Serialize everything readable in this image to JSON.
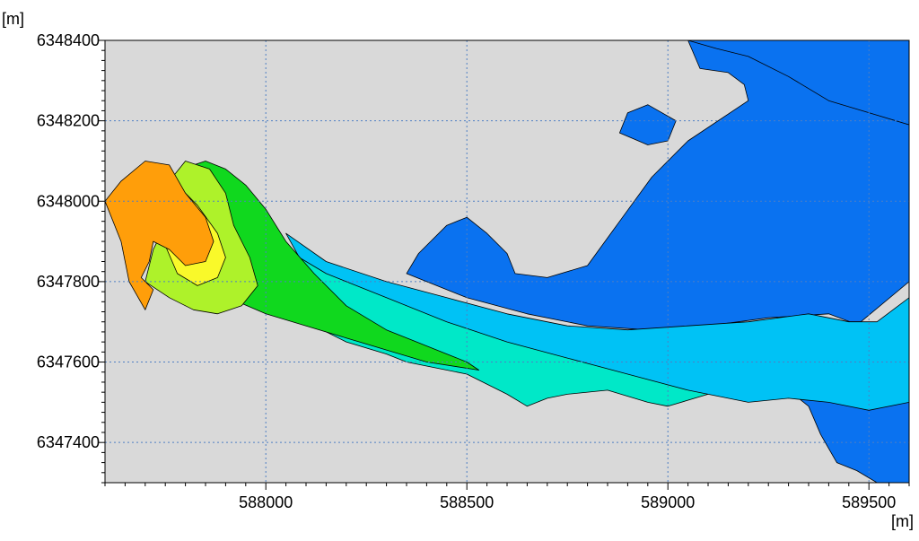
{
  "chart_data": {
    "type": "heatmap",
    "title": "",
    "xlabel": "[m]",
    "ylabel": "[m]",
    "xlim": [
      587600,
      589600
    ],
    "ylim": [
      6347300,
      6348400
    ],
    "x_ticks": [
      588000,
      588500,
      589000,
      589500
    ],
    "x_tick_labels": [
      "588000",
      "588500",
      "589000",
      "589500"
    ],
    "y_ticks": [
      6347400,
      6347600,
      6347800,
      6348000,
      6348200,
      6348400
    ],
    "y_tick_labels": [
      "6347400",
      "6347600",
      "6347800",
      "6348000",
      "6348200",
      "6348400"
    ],
    "grid": true,
    "legend": "none",
    "colors": {
      "background": "#d9d9d9",
      "grid": "#4f7fc4",
      "contour_line": "#000000",
      "levels": [
        "#0a72f0",
        "#00c2f5",
        "#00e8c8",
        "#10d81e",
        "#aef22a",
        "#f9f92a",
        "#ff9e0a"
      ]
    },
    "regions": [
      {
        "level": 0,
        "color": "#0a72f0",
        "points": [
          [
            588350,
            6347820
          ],
          [
            588500,
            6347760
          ],
          [
            588650,
            6347720
          ],
          [
            588800,
            6347690
          ],
          [
            588950,
            6347680
          ],
          [
            589100,
            6347690
          ],
          [
            589250,
            6347710
          ],
          [
            589400,
            6347720
          ],
          [
            589480,
            6347690
          ],
          [
            589600,
            6347700
          ],
          [
            589600,
            6347300
          ],
          [
            589520,
            6347300
          ],
          [
            589470,
            6347330
          ],
          [
            589420,
            6347350
          ],
          [
            589380,
            6347420
          ],
          [
            589350,
            6347490
          ],
          [
            589300,
            6347530
          ],
          [
            589250,
            6347540
          ],
          [
            589210,
            6347520
          ],
          [
            589160,
            6347600
          ],
          [
            589200,
            6347640
          ],
          [
            589250,
            6347660
          ],
          [
            589300,
            6347690
          ],
          [
            589380,
            6347700
          ],
          [
            589480,
            6347700
          ],
          [
            589600,
            6347800
          ],
          [
            589600,
            6348400
          ],
          [
            589050,
            6348400
          ],
          [
            589080,
            6348330
          ],
          [
            589150,
            6348320
          ],
          [
            589190,
            6348290
          ],
          [
            589200,
            6348250
          ],
          [
            589050,
            6348150
          ],
          [
            588960,
            6348060
          ],
          [
            588880,
            6347950
          ],
          [
            588800,
            6347840
          ],
          [
            588700,
            6347810
          ],
          [
            588620,
            6347820
          ],
          [
            588600,
            6347870
          ],
          [
            588550,
            6347920
          ],
          [
            588500,
            6347960
          ],
          [
            588450,
            6347940
          ],
          [
            588380,
            6347870
          ]
        ]
      },
      {
        "level": 0,
        "color": "#0a72f0",
        "points": [
          [
            589050,
            6348400
          ],
          [
            589600,
            6348400
          ],
          [
            589600,
            6348190
          ],
          [
            589400,
            6348250
          ],
          [
            589300,
            6348310
          ],
          [
            589200,
            6348360
          ],
          [
            589120,
            6348380
          ]
        ]
      },
      {
        "level": 0,
        "color": "#0a72f0",
        "points": [
          [
            588900,
            6348220
          ],
          [
            588950,
            6348240
          ],
          [
            589020,
            6348200
          ],
          [
            589000,
            6348150
          ],
          [
            588950,
            6348140
          ],
          [
            588880,
            6348170
          ]
        ]
      },
      {
        "level": 1,
        "color": "#00c2f5",
        "points": [
          [
            588050,
            6347920
          ],
          [
            588150,
            6347850
          ],
          [
            588300,
            6347800
          ],
          [
            588450,
            6347760
          ],
          [
            588600,
            6347720
          ],
          [
            588750,
            6347690
          ],
          [
            588900,
            6347680
          ],
          [
            589050,
            6347690
          ],
          [
            589200,
            6347700
          ],
          [
            589350,
            6347720
          ],
          [
            589450,
            6347700
          ],
          [
            589520,
            6347700
          ],
          [
            589600,
            6347760
          ],
          [
            589600,
            6347500
          ],
          [
            589500,
            6347480
          ],
          [
            589400,
            6347500
          ],
          [
            589300,
            6347510
          ],
          [
            589200,
            6347500
          ],
          [
            589100,
            6347520
          ],
          [
            589000,
            6347520
          ],
          [
            588900,
            6347540
          ],
          [
            588800,
            6347560
          ],
          [
            588700,
            6347580
          ],
          [
            588600,
            6347600
          ],
          [
            588500,
            6347620
          ],
          [
            588400,
            6347660
          ],
          [
            588300,
            6347710
          ],
          [
            588200,
            6347770
          ],
          [
            588100,
            6347830
          ]
        ]
      },
      {
        "level": 2,
        "color": "#00e8c8",
        "points": [
          [
            587960,
            6347980
          ],
          [
            588050,
            6347880
          ],
          [
            588150,
            6347820
          ],
          [
            588300,
            6347760
          ],
          [
            588450,
            6347700
          ],
          [
            588600,
            6347650
          ],
          [
            588750,
            6347610
          ],
          [
            588900,
            6347570
          ],
          [
            589050,
            6347530
          ],
          [
            589100,
            6347520
          ],
          [
            589000,
            6347490
          ],
          [
            588950,
            6347500
          ],
          [
            588850,
            6347530
          ],
          [
            588750,
            6347520
          ],
          [
            588700,
            6347510
          ],
          [
            588650,
            6347490
          ],
          [
            588600,
            6347520
          ],
          [
            588500,
            6347570
          ],
          [
            588400,
            6347590
          ],
          [
            588350,
            6347600
          ],
          [
            588300,
            6347620
          ],
          [
            588200,
            6347650
          ],
          [
            588100,
            6347700
          ],
          [
            588000,
            6347760
          ],
          [
            587950,
            6347820
          ],
          [
            587900,
            6347900
          ]
        ]
      },
      {
        "level": 3,
        "color": "#10d81e",
        "points": [
          [
            587850,
            6348100
          ],
          [
            587900,
            6348080
          ],
          [
            587950,
            6348040
          ],
          [
            588000,
            6347980
          ],
          [
            588050,
            6347900
          ],
          [
            588120,
            6347820
          ],
          [
            588200,
            6347740
          ],
          [
            588300,
            6347680
          ],
          [
            588400,
            6347640
          ],
          [
            588500,
            6347600
          ],
          [
            588530,
            6347580
          ],
          [
            588400,
            6347600
          ],
          [
            588300,
            6347630
          ],
          [
            588200,
            6347660
          ],
          [
            588100,
            6347690
          ],
          [
            588000,
            6347720
          ],
          [
            587930,
            6347750
          ],
          [
            587880,
            6347810
          ],
          [
            587850,
            6347870
          ],
          [
            587800,
            6347950
          ],
          [
            587780,
            6348020
          ],
          [
            587790,
            6348080
          ]
        ]
      },
      {
        "level": 4,
        "color": "#aef22a",
        "points": [
          [
            587800,
            6348100
          ],
          [
            587860,
            6348080
          ],
          [
            587900,
            6348020
          ],
          [
            587920,
            6347940
          ],
          [
            587960,
            6347860
          ],
          [
            587980,
            6347790
          ],
          [
            587940,
            6347740
          ],
          [
            587880,
            6347720
          ],
          [
            587820,
            6347730
          ],
          [
            587760,
            6347760
          ],
          [
            587700,
            6347800
          ],
          [
            587720,
            6347880
          ],
          [
            587760,
            6347960
          ],
          [
            587760,
            6348050
          ]
        ]
      },
      {
        "level": 5,
        "color": "#f9f92a",
        "points": [
          [
            587720,
            6348060
          ],
          [
            587780,
            6348040
          ],
          [
            587830,
            6347990
          ],
          [
            587880,
            6347920
          ],
          [
            587900,
            6347860
          ],
          [
            587880,
            6347810
          ],
          [
            587830,
            6347790
          ],
          [
            587780,
            6347820
          ],
          [
            587750,
            6347890
          ],
          [
            587720,
            6347960
          ],
          [
            587700,
            6348020
          ]
        ]
      },
      {
        "level": 6,
        "color": "#ff9e0a",
        "points": [
          [
            587640,
            6348050
          ],
          [
            587700,
            6348100
          ],
          [
            587760,
            6348090
          ],
          [
            587800,
            6348020
          ],
          [
            587850,
            6347960
          ],
          [
            587870,
            6347900
          ],
          [
            587850,
            6347850
          ],
          [
            587800,
            6347840
          ],
          [
            587760,
            6347880
          ],
          [
            587720,
            6347900
          ],
          [
            587710,
            6347850
          ],
          [
            587690,
            6347810
          ],
          [
            587720,
            6347780
          ],
          [
            587700,
            6347730
          ],
          [
            587660,
            6347800
          ],
          [
            587640,
            6347900
          ],
          [
            587600,
            6348000
          ]
        ]
      }
    ]
  }
}
